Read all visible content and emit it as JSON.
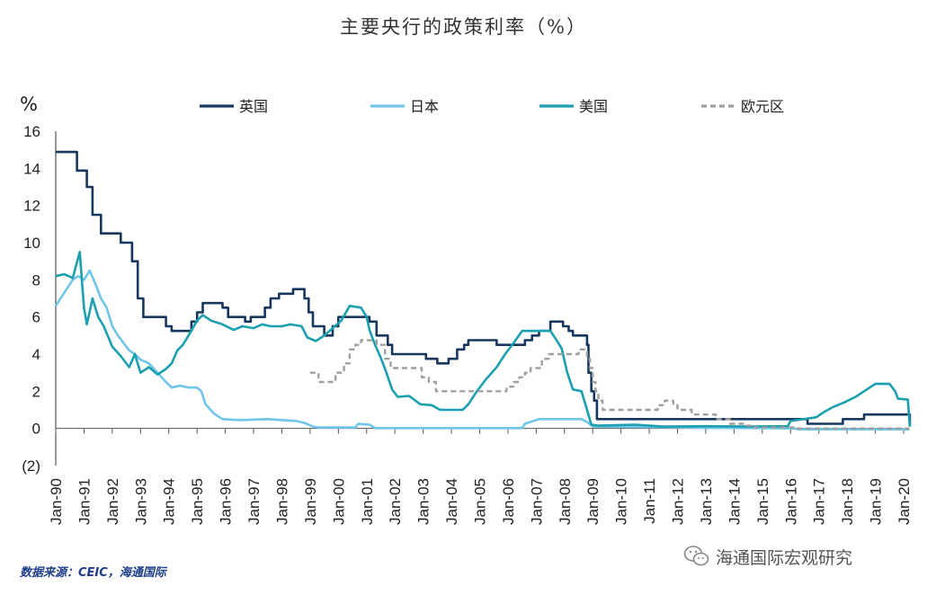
{
  "title": "主要央行的政策利率（%）",
  "unit_label": "%",
  "source": "数据来源：CEIC，海通国际",
  "watermark": {
    "text": "海通国际宏观研究",
    "icon": "wechat-icon"
  },
  "chart_data": {
    "type": "line",
    "ylim": [
      -2,
      16
    ],
    "yticks": [
      -2,
      0,
      2,
      4,
      6,
      8,
      10,
      12,
      14,
      16
    ],
    "ytick_labels": [
      "(2)",
      "0",
      "2",
      "4",
      "6",
      "8",
      "10",
      "12",
      "14",
      "16"
    ],
    "xlim": [
      1990,
      2020
    ],
    "xticks": [
      1990,
      1991,
      1992,
      1993,
      1994,
      1995,
      1996,
      1997,
      1998,
      1999,
      2000,
      2001,
      2002,
      2003,
      2004,
      2005,
      2006,
      2007,
      2008,
      2009,
      2010,
      2011,
      2012,
      2013,
      2014,
      2015,
      2016,
      2017,
      2018,
      2019,
      2020
    ],
    "xtick_labels": [
      "Jan-90",
      "Jan-91",
      "Jan-92",
      "Jan-93",
      "Jan-94",
      "Jan-95",
      "Jan-96",
      "Jan-97",
      "Jan-98",
      "Jan-99",
      "Jan-00",
      "Jan-01",
      "Jan-02",
      "Jan-03",
      "Jan-04",
      "Jan-05",
      "Jan-06",
      "Jan-07",
      "Jan-08",
      "Jan-09",
      "Jan-10",
      "Jan-11",
      "Jan-12",
      "Jan-13",
      "Jan-14",
      "Jan-15",
      "Jan-16",
      "Jan-17",
      "Jan-18",
      "Jan-19",
      "Jan-20"
    ],
    "legend_position": "top",
    "grid": false,
    "series": [
      {
        "name": "英国",
        "color": "#17375e",
        "dash": false,
        "step": true,
        "points": [
          [
            1990,
            14.88
          ],
          [
            1990.75,
            13.88
          ],
          [
            1991.1,
            13.0
          ],
          [
            1991.3,
            11.5
          ],
          [
            1991.6,
            10.5
          ],
          [
            1992.3,
            10.0
          ],
          [
            1992.7,
            9.0
          ],
          [
            1992.9,
            7.0
          ],
          [
            1993.1,
            6.0
          ],
          [
            1993.9,
            5.5
          ],
          [
            1994.1,
            5.25
          ],
          [
            1994.8,
            5.75
          ],
          [
            1995.0,
            6.25
          ],
          [
            1995.2,
            6.75
          ],
          [
            1995.9,
            6.5
          ],
          [
            1996.1,
            6.0
          ],
          [
            1996.7,
            5.75
          ],
          [
            1996.9,
            6.0
          ],
          [
            1997.4,
            6.5
          ],
          [
            1997.6,
            7.0
          ],
          [
            1997.9,
            7.25
          ],
          [
            1998.4,
            7.5
          ],
          [
            1998.8,
            7.0
          ],
          [
            1998.95,
            6.25
          ],
          [
            1999.1,
            5.5
          ],
          [
            1999.5,
            5.0
          ],
          [
            1999.8,
            5.5
          ],
          [
            2000.0,
            6.0
          ],
          [
            2001.1,
            5.75
          ],
          [
            2001.35,
            5.0
          ],
          [
            2001.75,
            4.5
          ],
          [
            2001.9,
            4.0
          ],
          [
            2003.1,
            3.75
          ],
          [
            2003.5,
            3.5
          ],
          [
            2003.9,
            3.75
          ],
          [
            2004.2,
            4.25
          ],
          [
            2004.45,
            4.5
          ],
          [
            2004.6,
            4.75
          ],
          [
            2005.6,
            4.5
          ],
          [
            2006.6,
            4.75
          ],
          [
            2006.85,
            5.0
          ],
          [
            2007.1,
            5.25
          ],
          [
            2007.5,
            5.75
          ],
          [
            2007.95,
            5.5
          ],
          [
            2008.15,
            5.25
          ],
          [
            2008.3,
            5.0
          ],
          [
            2008.8,
            4.5
          ],
          [
            2008.85,
            3.0
          ],
          [
            2008.95,
            2.0
          ],
          [
            2009.05,
            1.5
          ],
          [
            2009.15,
            0.5
          ],
          [
            2016.6,
            0.25
          ],
          [
            2017.85,
            0.5
          ],
          [
            2018.6,
            0.75
          ],
          [
            2020.2,
            0.75
          ],
          [
            2020.22,
            0.1
          ]
        ]
      },
      {
        "name": "日本",
        "color": "#6fc6e8",
        "dash": false,
        "step": false,
        "points": [
          [
            1990.0,
            6.6
          ],
          [
            1990.3,
            7.3
          ],
          [
            1990.6,
            8.0
          ],
          [
            1990.8,
            8.2
          ],
          [
            1991.0,
            8.0
          ],
          [
            1991.2,
            8.5
          ],
          [
            1991.4,
            7.8
          ],
          [
            1991.6,
            7.0
          ],
          [
            1991.8,
            6.5
          ],
          [
            1992.0,
            5.5
          ],
          [
            1992.2,
            5.0
          ],
          [
            1992.4,
            4.6
          ],
          [
            1992.6,
            4.2
          ],
          [
            1992.8,
            4.0
          ],
          [
            1993.0,
            3.7
          ],
          [
            1993.3,
            3.5
          ],
          [
            1993.6,
            3.0
          ],
          [
            1993.9,
            2.5
          ],
          [
            1994.1,
            2.2
          ],
          [
            1994.4,
            2.3
          ],
          [
            1994.7,
            2.2
          ],
          [
            1995.0,
            2.2
          ],
          [
            1995.15,
            2.0
          ],
          [
            1995.3,
            1.3
          ],
          [
            1995.6,
            0.8
          ],
          [
            1995.9,
            0.5
          ],
          [
            1996.5,
            0.45
          ],
          [
            1997.5,
            0.5
          ],
          [
            1998.5,
            0.4
          ],
          [
            1998.8,
            0.3
          ],
          [
            1999.1,
            0.1
          ],
          [
            1999.3,
            0.05
          ],
          [
            2000.6,
            0.05
          ],
          [
            2000.7,
            0.25
          ],
          [
            2001.1,
            0.2
          ],
          [
            2001.3,
            0.02
          ],
          [
            2006.5,
            0.02
          ],
          [
            2006.6,
            0.25
          ],
          [
            2007.1,
            0.5
          ],
          [
            2008.6,
            0.5
          ],
          [
            2008.85,
            0.3
          ],
          [
            2009.0,
            0.1
          ],
          [
            2016.1,
            0.0
          ],
          [
            2016.3,
            -0.05
          ],
          [
            2020.2,
            -0.05
          ]
        ]
      },
      {
        "name": "美国",
        "color": "#1c9fae",
        "dash": false,
        "step": false,
        "points": [
          [
            1990.0,
            8.2
          ],
          [
            1990.3,
            8.3
          ],
          [
            1990.6,
            8.1
          ],
          [
            1990.85,
            9.5
          ],
          [
            1991.0,
            6.5
          ],
          [
            1991.1,
            5.6
          ],
          [
            1991.3,
            7.0
          ],
          [
            1991.5,
            6.0
          ],
          [
            1991.7,
            5.5
          ],
          [
            1992.0,
            4.4
          ],
          [
            1992.3,
            3.9
          ],
          [
            1992.6,
            3.3
          ],
          [
            1992.8,
            4.0
          ],
          [
            1993.0,
            3.0
          ],
          [
            1993.3,
            3.3
          ],
          [
            1993.6,
            2.9
          ],
          [
            1993.9,
            3.2
          ],
          [
            1994.1,
            3.5
          ],
          [
            1994.3,
            4.2
          ],
          [
            1994.5,
            4.5
          ],
          [
            1994.7,
            5.0
          ],
          [
            1995.0,
            5.8
          ],
          [
            1995.2,
            6.1
          ],
          [
            1995.5,
            5.8
          ],
          [
            1995.9,
            5.6
          ],
          [
            1996.3,
            5.3
          ],
          [
            1996.6,
            5.5
          ],
          [
            1997.0,
            5.4
          ],
          [
            1997.3,
            5.6
          ],
          [
            1997.6,
            5.5
          ],
          [
            1998.0,
            5.5
          ],
          [
            1998.3,
            5.6
          ],
          [
            1998.7,
            5.5
          ],
          [
            1998.9,
            4.9
          ],
          [
            1999.2,
            4.7
          ],
          [
            1999.5,
            5.0
          ],
          [
            1999.8,
            5.4
          ],
          [
            2000.1,
            5.8
          ],
          [
            2000.4,
            6.6
          ],
          [
            2000.8,
            6.5
          ],
          [
            2001.0,
            6.0
          ],
          [
            2001.1,
            5.3
          ],
          [
            2001.3,
            4.5
          ],
          [
            2001.5,
            3.8
          ],
          [
            2001.7,
            3.0
          ],
          [
            2001.9,
            2.1
          ],
          [
            2002.1,
            1.7
          ],
          [
            2002.5,
            1.75
          ],
          [
            2002.9,
            1.3
          ],
          [
            2003.3,
            1.25
          ],
          [
            2003.6,
            1.0
          ],
          [
            2004.0,
            1.0
          ],
          [
            2004.4,
            1.0
          ],
          [
            2004.6,
            1.3
          ],
          [
            2004.9,
            2.0
          ],
          [
            2005.2,
            2.6
          ],
          [
            2005.6,
            3.3
          ],
          [
            2005.9,
            4.0
          ],
          [
            2006.2,
            4.6
          ],
          [
            2006.5,
            5.25
          ],
          [
            2007.5,
            5.25
          ],
          [
            2007.7,
            4.8
          ],
          [
            2007.9,
            4.3
          ],
          [
            2008.1,
            3.0
          ],
          [
            2008.3,
            2.1
          ],
          [
            2008.6,
            2.0
          ],
          [
            2008.8,
            1.0
          ],
          [
            2008.95,
            0.2
          ],
          [
            2009.2,
            0.15
          ],
          [
            2010.5,
            0.2
          ],
          [
            2011.5,
            0.1
          ],
          [
            2013.0,
            0.12
          ],
          [
            2014.5,
            0.1
          ],
          [
            2015.9,
            0.12
          ],
          [
            2016.0,
            0.4
          ],
          [
            2016.9,
            0.6
          ],
          [
            2017.2,
            0.9
          ],
          [
            2017.5,
            1.15
          ],
          [
            2017.9,
            1.4
          ],
          [
            2018.3,
            1.7
          ],
          [
            2018.5,
            1.9
          ],
          [
            2018.8,
            2.2
          ],
          [
            2019.0,
            2.4
          ],
          [
            2019.5,
            2.4
          ],
          [
            2019.7,
            2.0
          ],
          [
            2019.8,
            1.6
          ],
          [
            2020.15,
            1.55
          ],
          [
            2020.22,
            0.1
          ]
        ]
      },
      {
        "name": "欧元区",
        "color": "#a0a0a0",
        "dash": true,
        "step": true,
        "points": [
          [
            1999.0,
            3.0
          ],
          [
            1999.3,
            2.5
          ],
          [
            1999.9,
            3.0
          ],
          [
            2000.2,
            3.5
          ],
          [
            2000.4,
            4.25
          ],
          [
            2000.6,
            4.5
          ],
          [
            2000.8,
            4.75
          ],
          [
            2001.35,
            4.5
          ],
          [
            2001.65,
            3.75
          ],
          [
            2001.85,
            3.25
          ],
          [
            2002.95,
            2.75
          ],
          [
            2003.2,
            2.5
          ],
          [
            2003.45,
            2.0
          ],
          [
            2005.95,
            2.25
          ],
          [
            2006.2,
            2.5
          ],
          [
            2006.4,
            2.75
          ],
          [
            2006.6,
            3.0
          ],
          [
            2006.8,
            3.25
          ],
          [
            2007.2,
            3.75
          ],
          [
            2007.45,
            4.0
          ],
          [
            2008.5,
            4.25
          ],
          [
            2008.8,
            3.75
          ],
          [
            2008.9,
            3.25
          ],
          [
            2009.0,
            2.5
          ],
          [
            2009.1,
            2.0
          ],
          [
            2009.2,
            1.5
          ],
          [
            2009.35,
            1.0
          ],
          [
            2011.3,
            1.25
          ],
          [
            2011.55,
            1.5
          ],
          [
            2011.85,
            1.25
          ],
          [
            2012.0,
            1.0
          ],
          [
            2012.5,
            0.75
          ],
          [
            2013.35,
            0.5
          ],
          [
            2013.85,
            0.25
          ],
          [
            2014.45,
            0.15
          ],
          [
            2014.7,
            0.05
          ],
          [
            2016.2,
            0.0
          ],
          [
            2020.2,
            0.0
          ]
        ]
      }
    ]
  }
}
